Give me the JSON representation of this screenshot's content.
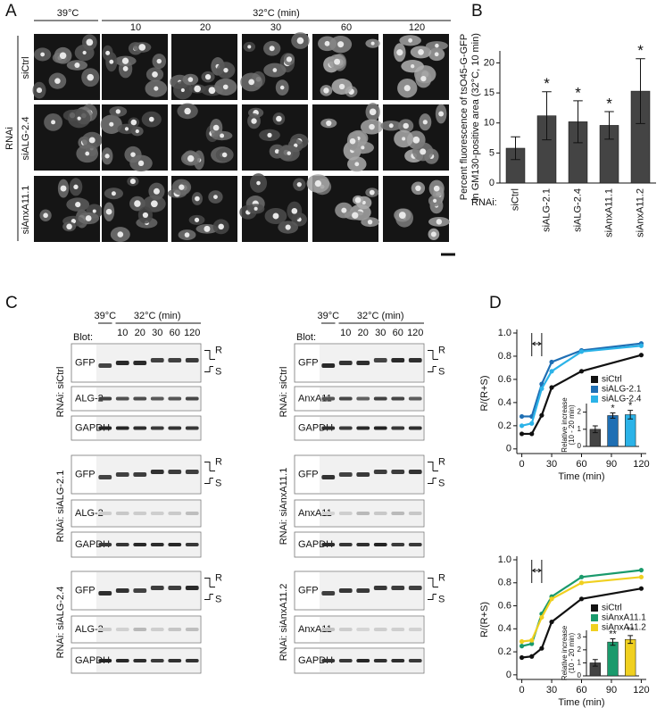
{
  "panels": {
    "A": {
      "label": "A",
      "header_left": "39°C",
      "header_right": "32°C (min)",
      "columns": [
        "10",
        "20",
        "30",
        "60",
        "120"
      ],
      "rows": [
        "siCtrl",
        "siALG-2.4",
        "siAnxA11.1"
      ],
      "row_group": "RNAi"
    },
    "B": {
      "label": "B"
    },
    "C": {
      "label": "C",
      "blots": [
        {
          "blot_label": "Blot:",
          "header_left": "39°C",
          "header_right": "32°C (min)",
          "lanes": [
            "10",
            "20",
            "30",
            "60",
            "120"
          ],
          "markers": [
            "R",
            "S"
          ],
          "groups": [
            {
              "rnai": "RNAi: siCtrl",
              "rows": [
                "GFP",
                "ALG-2",
                "GAPDH"
              ]
            },
            {
              "rnai": "RNAi: siALG-2.1",
              "rows": [
                "GFP",
                "ALG-2",
                "GAPDH"
              ]
            },
            {
              "rnai": "RNAi: siALG-2.4",
              "rows": [
                "GFP",
                "ALG-2",
                "GAPDH"
              ]
            }
          ]
        },
        {
          "blot_label": "Blot:",
          "header_left": "39°C",
          "header_right": "32°C (min)",
          "lanes": [
            "10",
            "20",
            "30",
            "60",
            "120"
          ],
          "markers": [
            "R",
            "S"
          ],
          "groups": [
            {
              "rnai": "RNAi: siCtrl",
              "rows": [
                "GFP",
                "AnxA11",
                "GAPDH"
              ]
            },
            {
              "rnai": "RNAi: siAnxA11.1",
              "rows": [
                "GFP",
                "AnxA11",
                "GAPDH"
              ]
            },
            {
              "rnai": "RNAi: siAnxA11.2",
              "rows": [
                "GFP",
                "AnxA11",
                "GAPDH"
              ]
            }
          ]
        }
      ]
    },
    "D": {
      "label": "D"
    }
  },
  "chart_data": [
    {
      "type": "bar",
      "categories": [
        "siCtrl",
        "siALG-2.1",
        "siALG-2.4",
        "siAnxA11.1",
        "siAnxA11.2"
      ],
      "values": [
        5.8,
        11.2,
        10.2,
        9.6,
        15.3
      ],
      "errors": [
        1.9,
        4.0,
        3.5,
        2.3,
        5.4
      ],
      "annotations": [
        null,
        "*",
        "*",
        "*",
        "*"
      ],
      "color": "#444444",
      "ylim": [
        0,
        22
      ],
      "yticks": [
        0,
        5,
        10,
        15,
        20
      ],
      "ylabel": [
        "Percent fluorescence of tsO45-G-GFP",
        "in GM130-positive area (32°C, 10 min)"
      ],
      "xlabel": "RNAi:"
    },
    {
      "type": "line",
      "x": [
        0,
        10,
        20,
        30,
        60,
        120
      ],
      "series": [
        {
          "name": "siCtrl",
          "color": "#111111",
          "values": [
            0.13,
            0.13,
            0.29,
            0.53,
            0.67,
            0.81
          ]
        },
        {
          "name": "siALG-2.1",
          "color": "#1f6fb4",
          "values": [
            0.28,
            0.28,
            0.56,
            0.75,
            0.85,
            0.91
          ]
        },
        {
          "name": "siALG-2.4",
          "color": "#2bb3e8",
          "values": [
            0.2,
            0.22,
            0.52,
            0.67,
            0.84,
            0.89
          ]
        }
      ],
      "xlim": [
        -5,
        125
      ],
      "xticks": [
        0,
        30,
        60,
        90,
        120
      ],
      "ylim": [
        -0.04,
        1.0
      ],
      "yticks": [
        0,
        0.2,
        0.4,
        0.6,
        0.8,
        {
          "value": 1.0,
          "label": "1.0"
        }
      ],
      "xlabel": "Time (min)",
      "ylabel": "R/(R+S)"
    },
    {
      "type": "bar",
      "values": [
        1.0,
        1.8,
        1.85
      ],
      "errors": [
        0.2,
        0.15,
        0.25
      ],
      "colors": [
        "#444444",
        "#1f6fb4",
        "#2bb3e8"
      ],
      "annotations": [
        null,
        "*",
        "*"
      ],
      "ylim": [
        0,
        2.5
      ],
      "yticks": [
        0,
        1,
        2
      ],
      "ylabel": [
        "Relative increase",
        "(10 - 20 min)"
      ]
    },
    {
      "type": "line",
      "x": [
        0,
        10,
        20,
        30,
        60,
        120
      ],
      "series": [
        {
          "name": "siCtrl",
          "color": "#111111",
          "values": [
            0.15,
            0.16,
            0.23,
            0.46,
            0.66,
            0.75
          ]
        },
        {
          "name": "siAnxA11.1",
          "color": "#1a9a6c",
          "values": [
            0.25,
            0.27,
            0.53,
            0.68,
            0.85,
            0.91
          ]
        },
        {
          "name": "siAnxA11.2",
          "color": "#f0d020",
          "values": [
            0.29,
            0.3,
            0.5,
            0.66,
            0.8,
            0.85
          ]
        }
      ],
      "xlim": [
        -5,
        125
      ],
      "xticks": [
        0,
        30,
        60,
        90,
        120
      ],
      "ylim": [
        -0.04,
        1.0
      ],
      "yticks": [
        0,
        0.2,
        0.4,
        0.6,
        0.8,
        {
          "value": 1.0,
          "label": "1.0"
        }
      ],
      "xlabel": "Time (min)",
      "ylabel": "R/(R+S)"
    },
    {
      "type": "bar",
      "values": [
        1.0,
        2.6,
        2.8
      ],
      "errors": [
        0.25,
        0.25,
        0.3
      ],
      "colors": [
        "#444444",
        "#1a9a6c",
        "#f0d020"
      ],
      "annotations": [
        null,
        "**",
        "**"
      ],
      "ylim": [
        0,
        3.5
      ],
      "yticks": [
        0,
        1,
        2,
        3
      ],
      "ylabel": [
        "Relative increase",
        "(10 - 20 min)"
      ]
    }
  ]
}
